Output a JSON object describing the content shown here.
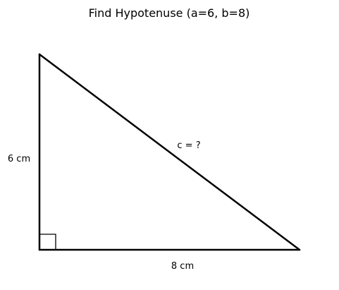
{
  "title": "Find Hypotenuse (a=6, b=8)",
  "triangle": {
    "side_a": 6,
    "side_b": 8,
    "units": "cm",
    "label_a": "6 cm",
    "label_b": "8 cm",
    "label_c": "c = ?",
    "right_angle": "bottom-left"
  },
  "colors": {
    "stroke": "#000000",
    "background": "#ffffff"
  }
}
